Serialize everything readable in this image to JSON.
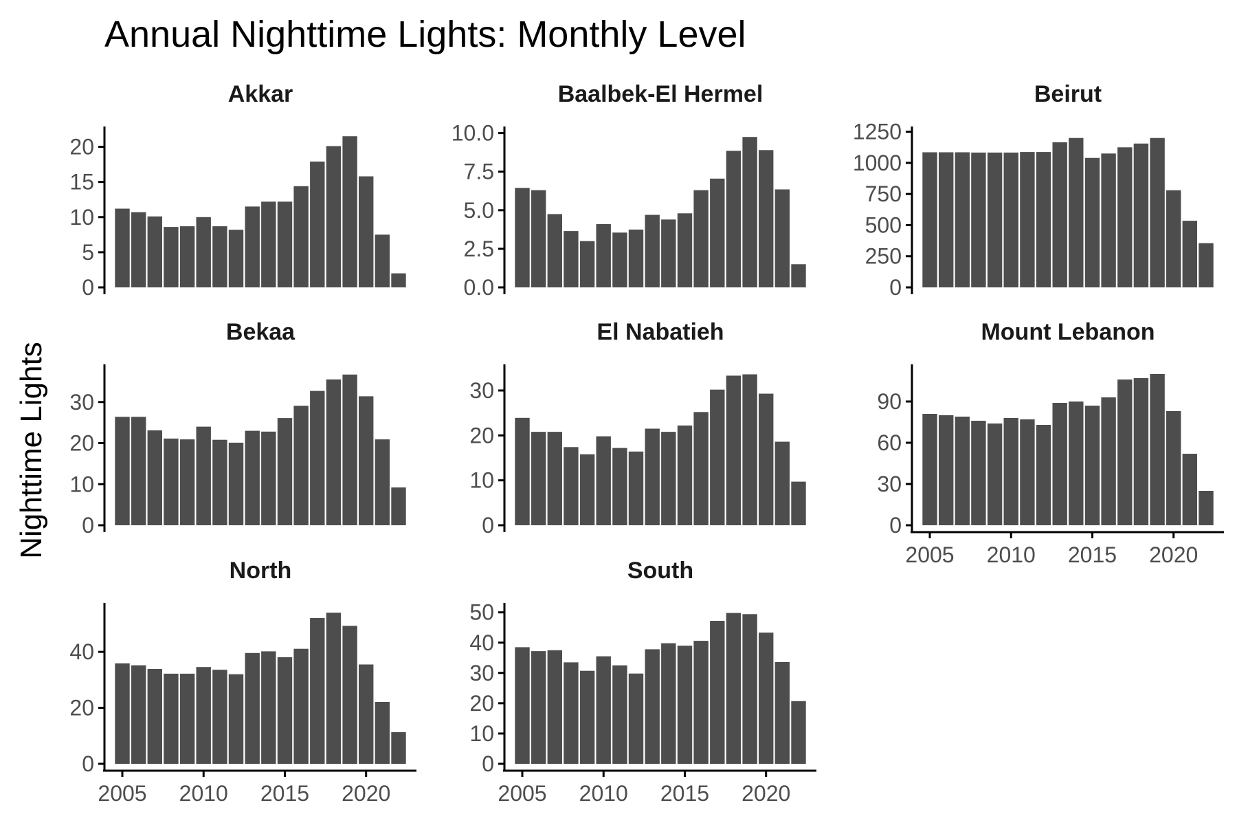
{
  "title": "Annual Nighttime Lights: Monthly Level",
  "ylabel": "Nighttime Lights",
  "colors": {
    "bar": "#4d4d4d",
    "axis": "#000000",
    "tick_text": "#4d4d4d",
    "strip_text": "#1a1a1a"
  },
  "chart_data": [
    {
      "type": "bar",
      "title": "Akkar",
      "x": [
        2005,
        2006,
        2007,
        2008,
        2009,
        2010,
        2011,
        2012,
        2013,
        2014,
        2015,
        2016,
        2017,
        2018,
        2019,
        2020,
        2021,
        2022
      ],
      "values": [
        11.2,
        10.7,
        10.1,
        8.6,
        8.7,
        10.0,
        8.7,
        8.2,
        11.5,
        12.2,
        12.2,
        14.4,
        17.9,
        20.1,
        21.5,
        15.8,
        7.5,
        2.0
      ],
      "ylim": [
        0,
        22.5
      ],
      "yticks": [
        0,
        5,
        10,
        15,
        20
      ],
      "ytick_labels": [
        "0",
        "5",
        "10",
        "15",
        "20"
      ],
      "xticks": [],
      "xtick_labels": []
    },
    {
      "type": "bar",
      "title": "Baalbek-El Hermel",
      "x": [
        2005,
        2006,
        2007,
        2008,
        2009,
        2010,
        2011,
        2012,
        2013,
        2014,
        2015,
        2016,
        2017,
        2018,
        2019,
        2020,
        2021,
        2022
      ],
      "values": [
        6.45,
        6.3,
        4.75,
        3.65,
        3.0,
        4.1,
        3.55,
        3.75,
        4.7,
        4.4,
        4.8,
        6.3,
        7.05,
        8.85,
        9.75,
        8.9,
        6.35,
        1.5
      ],
      "ylim": [
        0,
        10.25
      ],
      "yticks": [
        0,
        2.5,
        5,
        7.5,
        10
      ],
      "ytick_labels": [
        "0.0",
        "2.5",
        "5.0",
        "7.5",
        "10.0"
      ],
      "xticks": [],
      "xtick_labels": []
    },
    {
      "type": "bar",
      "title": "Beirut",
      "x": [
        2005,
        2006,
        2007,
        2008,
        2009,
        2010,
        2011,
        2012,
        2013,
        2014,
        2015,
        2016,
        2017,
        2018,
        2019,
        2020,
        2021,
        2022
      ],
      "values": [
        1085,
        1085,
        1085,
        1083,
        1083,
        1083,
        1087,
        1087,
        1165,
        1200,
        1040,
        1075,
        1125,
        1155,
        1200,
        780,
        535,
        355
      ],
      "ylim": [
        0,
        1270
      ],
      "yticks": [
        0,
        250,
        500,
        750,
        1000,
        1250
      ],
      "ytick_labels": [
        "0",
        "250",
        "500",
        "750",
        "1000",
        "1250"
      ],
      "xticks": [],
      "xtick_labels": []
    },
    {
      "type": "bar",
      "title": "Bekaa",
      "x": [
        2005,
        2006,
        2007,
        2008,
        2009,
        2010,
        2011,
        2012,
        2013,
        2014,
        2015,
        2016,
        2017,
        2018,
        2019,
        2020,
        2021,
        2022
      ],
      "values": [
        26.4,
        26.4,
        23.1,
        21.1,
        20.9,
        24.0,
        20.8,
        20.1,
        23.0,
        22.8,
        26.1,
        29.1,
        32.7,
        35.5,
        36.7,
        31.4,
        20.9,
        9.2
      ],
      "ylim": [
        0,
        38.5
      ],
      "yticks": [
        0,
        10,
        20,
        30
      ],
      "ytick_labels": [
        "0",
        "10",
        "20",
        "30"
      ],
      "xticks": [],
      "xtick_labels": []
    },
    {
      "type": "bar",
      "title": "El Nabatieh",
      "x": [
        2005,
        2006,
        2007,
        2008,
        2009,
        2010,
        2011,
        2012,
        2013,
        2014,
        2015,
        2016,
        2017,
        2018,
        2019,
        2020,
        2021,
        2022
      ],
      "values": [
        23.9,
        20.8,
        20.8,
        17.4,
        15.8,
        19.8,
        17.2,
        16.4,
        21.5,
        20.8,
        22.2,
        25.2,
        30.2,
        33.3,
        33.6,
        29.3,
        18.6,
        9.7
      ],
      "ylim": [
        0,
        35.2
      ],
      "yticks": [
        0,
        10,
        20,
        30
      ],
      "ytick_labels": [
        "0",
        "10",
        "20",
        "30"
      ],
      "xticks": [],
      "xtick_labels": []
    },
    {
      "type": "bar",
      "title": "Mount Lebanon",
      "x": [
        2005,
        2006,
        2007,
        2008,
        2009,
        2010,
        2011,
        2012,
        2013,
        2014,
        2015,
        2016,
        2017,
        2018,
        2019,
        2020,
        2021,
        2022
      ],
      "values": [
        81,
        80,
        79,
        76,
        74,
        78,
        77,
        73,
        89,
        90,
        87,
        93,
        106,
        107,
        110,
        83,
        52,
        25
      ],
      "ylim": [
        0,
        115
      ],
      "yticks": [
        0,
        30,
        60,
        90
      ],
      "ytick_labels": [
        "0",
        "30",
        "60",
        "90"
      ],
      "xticks": [
        2005,
        2010,
        2015,
        2020
      ],
      "xtick_labels": [
        "2005",
        "2010",
        "2015",
        "2020"
      ]
    },
    {
      "type": "bar",
      "title": "North",
      "x": [
        2005,
        2006,
        2007,
        2008,
        2009,
        2010,
        2011,
        2012,
        2013,
        2014,
        2015,
        2016,
        2017,
        2018,
        2019,
        2020,
        2021,
        2022
      ],
      "values": [
        35.9,
        35.2,
        33.9,
        32.2,
        32.2,
        34.6,
        33.6,
        32.0,
        39.6,
        40.2,
        38.1,
        41.1,
        52.1,
        54.0,
        49.3,
        35.5,
        22.1,
        11.3
      ],
      "ylim": [
        0,
        56.5
      ],
      "yticks": [
        0,
        20,
        40
      ],
      "ytick_labels": [
        "0",
        "20",
        "40"
      ],
      "xticks": [
        2005,
        2010,
        2015,
        2020
      ],
      "xtick_labels": [
        "2005",
        "2010",
        "2015",
        "2020"
      ]
    },
    {
      "type": "bar",
      "title": "South",
      "x": [
        2005,
        2006,
        2007,
        2008,
        2009,
        2010,
        2011,
        2012,
        2013,
        2014,
        2015,
        2016,
        2017,
        2018,
        2019,
        2020,
        2021,
        2022
      ],
      "values": [
        38.5,
        37.2,
        37.5,
        33.5,
        30.7,
        35.5,
        32.5,
        29.8,
        37.8,
        39.8,
        39.0,
        40.6,
        47.2,
        49.8,
        49.4,
        43.3,
        33.6,
        20.7
      ],
      "ylim": [
        0,
        52.2
      ],
      "yticks": [
        0,
        10,
        20,
        30,
        40,
        50
      ],
      "ytick_labels": [
        "0",
        "10",
        "20",
        "30",
        "40",
        "50"
      ],
      "xticks": [
        2005,
        2010,
        2015,
        2020
      ],
      "xtick_labels": [
        "2005",
        "2010",
        "2015",
        "2020"
      ]
    }
  ]
}
